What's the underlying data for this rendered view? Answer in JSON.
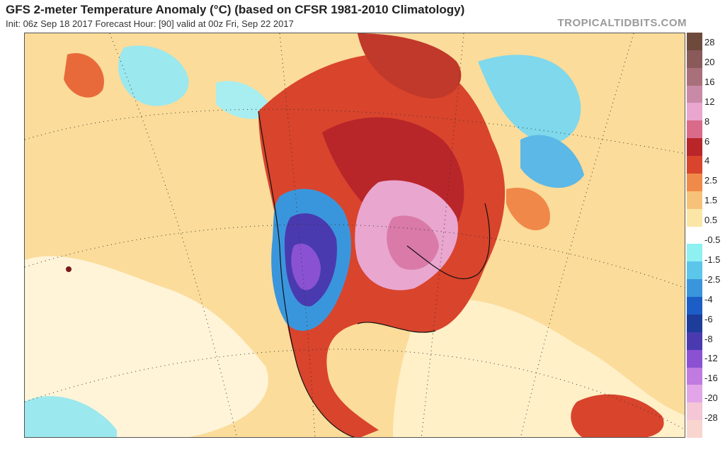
{
  "header": {
    "title": "GFS 2-meter Temperature Anomaly (°C) (based on CFSR 1981-2010 Climatology)",
    "subtitle": "Init: 06z Sep 18 2017   Forecast Hour: [90]   valid at 00z Fri, Sep 22 2017",
    "brand": "TROPICALTIDBITS.COM"
  },
  "legend": {
    "labels": [
      "28",
      "20",
      "16",
      "12",
      "8",
      "6",
      "4",
      "2.5",
      "1.5",
      "0.5",
      "-0.5",
      "-1.5",
      "-2.5",
      "-4",
      "-6",
      "-8",
      "-12",
      "-16",
      "-20",
      "-28"
    ],
    "colors": [
      "#6e4a3c",
      "#8a5a5a",
      "#a8707a",
      "#c98aa8",
      "#e9a6cf",
      "#d96a8a",
      "#b8262a",
      "#d9442c",
      "#f08a4a",
      "#f6c27a",
      "#fbe6a6",
      "#ffffff",
      "#8ef0f0",
      "#5cc6ea",
      "#3a96dc",
      "#1c5ec6",
      "#1e3c9a",
      "#4a3ab0",
      "#8a52d2",
      "#c07ae0",
      "#e2a6e8",
      "#f4c6d6",
      "#f8d6cf"
    ]
  }
}
